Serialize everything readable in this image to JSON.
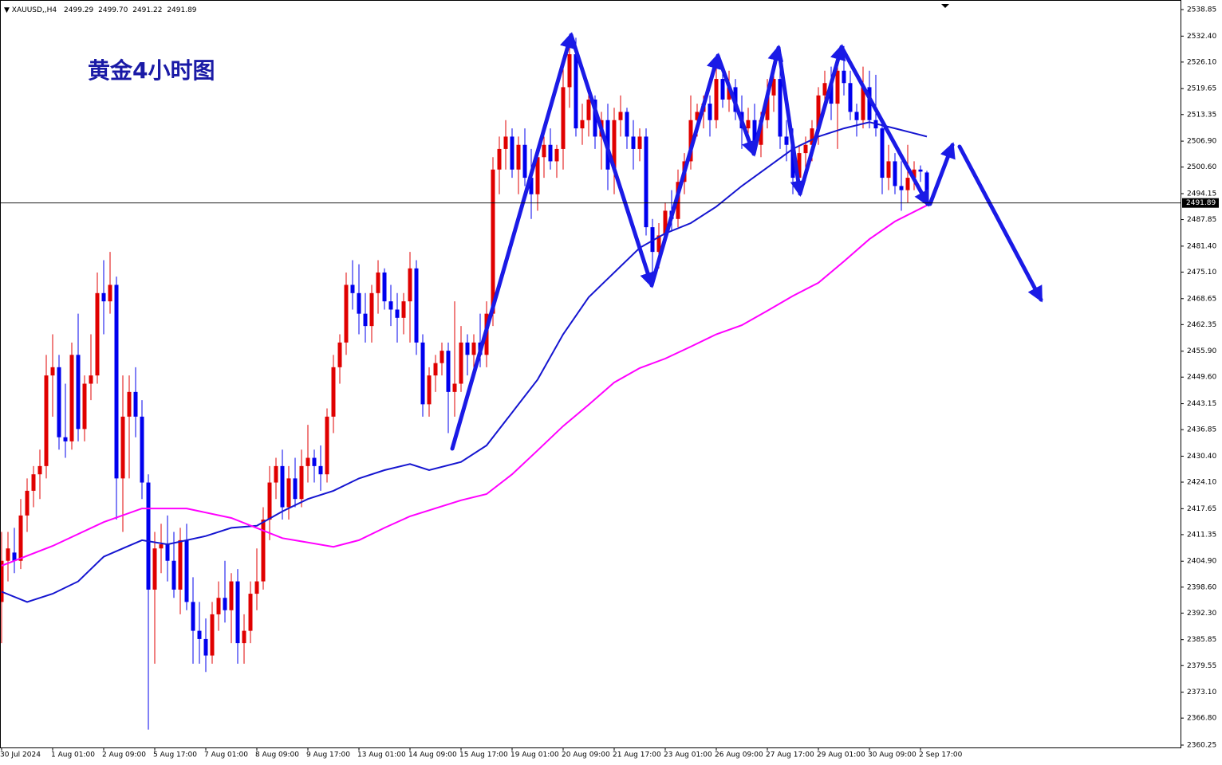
{
  "chart_data": {
    "type": "candlestick",
    "symbol": "XAUUSD,,H4",
    "last_bar_labels": [
      "2499.29",
      "2499.70",
      "2491.22",
      "2491.89"
    ],
    "title": "黄金4小时图",
    "up_color": "#e00000",
    "down_color": "#0000ee",
    "ylim": [
      2359.67,
      2541.17
    ],
    "yticks": [
      2360.25,
      {
        "value": 2366.8,
        "label": "2366.80"
      },
      {
        "value": 2373.1,
        "label": "2373.10"
      },
      2379.55,
      2385.85,
      {
        "value": 2392.3,
        "label": "2392.30"
      },
      {
        "value": 2398.6,
        "label": "2398.60"
      },
      {
        "value": 2404.9,
        "label": "2404.90"
      },
      2411.35,
      2417.65,
      {
        "value": 2424.1,
        "label": "2424.10"
      },
      {
        "value": 2430.4,
        "label": "2430.40"
      },
      2436.85,
      2443.15,
      {
        "value": 2449.6,
        "label": "2449.60"
      },
      {
        "value": 2455.9,
        "label": "2455.90"
      },
      2462.35,
      2468.65,
      {
        "value": 2475.1,
        "label": "2475.10"
      },
      {
        "value": 2481.4,
        "label": "2481.40"
      },
      2487.85,
      2494.15,
      {
        "value": 2500.6,
        "label": "2500.60"
      },
      {
        "value": 2506.9,
        "label": "2506.90"
      },
      2513.35,
      2519.65,
      {
        "value": 2526.1,
        "label": "2526.10"
      },
      {
        "value": 2532.4,
        "label": "2532.40"
      },
      2538.85
    ],
    "categories": [
      "30 Jul 2024",
      null,
      null,
      null,
      null,
      null,
      null,
      null,
      "1 Aug 01:00",
      null,
      null,
      null,
      null,
      null,
      null,
      null,
      "2 Aug 09:00",
      null,
      null,
      null,
      null,
      null,
      null,
      null,
      "5 Aug 17:00",
      null,
      null,
      null,
      null,
      null,
      null,
      null,
      "7 Aug 01:00",
      null,
      null,
      null,
      null,
      null,
      null,
      null,
      "8 Aug 09:00",
      null,
      null,
      null,
      null,
      null,
      null,
      null,
      "9 Aug 17:00",
      null,
      null,
      null,
      null,
      null,
      null,
      null,
      "13 Aug 01:00",
      null,
      null,
      null,
      null,
      null,
      null,
      null,
      "14 Aug 09:00",
      null,
      null,
      null,
      null,
      null,
      null,
      null,
      "15 Aug 17:00",
      null,
      null,
      null,
      null,
      null,
      null,
      null,
      "19 Aug 01:00",
      null,
      null,
      null,
      null,
      null,
      null,
      null,
      "20 Aug 09:00",
      null,
      null,
      null,
      null,
      null,
      null,
      null,
      "21 Aug 17:00",
      null,
      null,
      null,
      null,
      null,
      null,
      null,
      "23 Aug 01:00",
      null,
      null,
      null,
      null,
      null,
      null,
      null,
      "26 Aug 09:00",
      null,
      null,
      null,
      null,
      null,
      null,
      null,
      "27 Aug 17:00",
      null,
      null,
      null,
      null,
      null,
      null,
      null,
      "29 Aug 01:00",
      null,
      null,
      null,
      null,
      null,
      null,
      null,
      "30 Aug 09:00",
      null,
      null,
      null,
      null,
      null,
      null,
      null,
      "2 Sep 17:00",
      null
    ],
    "candles": [
      [
        2395,
        2412,
        2385,
        2405
      ],
      [
        2405,
        2412,
        2400,
        2408
      ],
      [
        2407,
        2413,
        2402,
        2405
      ],
      [
        2405,
        2420,
        2403,
        2416
      ],
      [
        2416,
        2425,
        2412,
        2422
      ],
      [
        2422,
        2428,
        2418,
        2426
      ],
      [
        2426,
        2432,
        2420,
        2428
      ],
      [
        2428,
        2455,
        2425,
        2450
      ],
      [
        2450,
        2460,
        2440,
        2452
      ],
      [
        2452,
        2455,
        2432,
        2435
      ],
      [
        2435,
        2448,
        2430,
        2434
      ],
      [
        2434,
        2458,
        2432,
        2455
      ],
      [
        2455,
        2465,
        2434,
        2437
      ],
      [
        2437,
        2450,
        2434,
        2448
      ],
      [
        2448,
        2460,
        2444,
        2450
      ],
      [
        2450,
        2475,
        2448,
        2470
      ],
      [
        2470,
        2478,
        2460,
        2468
      ],
      [
        2468,
        2480,
        2465,
        2472
      ],
      [
        2472,
        2474,
        2415,
        2425
      ],
      [
        2425,
        2450,
        2412,
        2440
      ],
      [
        2440,
        2450,
        2425,
        2446
      ],
      [
        2446,
        2452,
        2435,
        2440
      ],
      [
        2440,
        2444,
        2420,
        2424
      ],
      [
        2424,
        2426,
        2364,
        2398
      ],
      [
        2398,
        2412,
        2380,
        2408
      ],
      [
        2408,
        2414,
        2402,
        2409
      ],
      [
        2409,
        2416,
        2400,
        2405
      ],
      [
        2405,
        2412,
        2396,
        2398
      ],
      [
        2398,
        2413,
        2392,
        2410
      ],
      [
        2410,
        2414,
        2393,
        2395
      ],
      [
        2395,
        2401,
        2380,
        2388
      ],
      [
        2388,
        2395,
        2380,
        2386
      ],
      [
        2386,
        2391,
        2378,
        2382
      ],
      [
        2382,
        2395,
        2380,
        2392
      ],
      [
        2392,
        2400,
        2388,
        2396
      ],
      [
        2396,
        2405,
        2390,
        2393
      ],
      [
        2393,
        2402,
        2385,
        2400
      ],
      [
        2400,
        2403,
        2380,
        2385
      ],
      [
        2385,
        2392,
        2380,
        2388
      ],
      [
        2388,
        2400,
        2385,
        2397
      ],
      [
        2397,
        2408,
        2393,
        2400
      ],
      [
        2400,
        2418,
        2398,
        2415
      ],
      [
        2415,
        2428,
        2410,
        2424
      ],
      [
        2424,
        2430,
        2420,
        2428
      ],
      [
        2428,
        2432,
        2415,
        2418
      ],
      [
        2418,
        2428,
        2415,
        2425
      ],
      [
        2425,
        2430,
        2418,
        2420
      ],
      [
        2420,
        2432,
        2418,
        2428
      ],
      [
        2428,
        2438,
        2424,
        2430
      ],
      [
        2430,
        2432,
        2424,
        2428
      ],
      [
        2428,
        2433,
        2422,
        2426
      ],
      [
        2426,
        2442,
        2424,
        2440
      ],
      [
        2440,
        2455,
        2436,
        2452
      ],
      [
        2452,
        2460,
        2448,
        2458
      ],
      [
        2458,
        2475,
        2455,
        2472
      ],
      [
        2472,
        2478,
        2466,
        2470
      ],
      [
        2470,
        2477,
        2460,
        2465
      ],
      [
        2465,
        2470,
        2458,
        2462
      ],
      [
        2462,
        2472,
        2458,
        2470
      ],
      [
        2470,
        2478,
        2465,
        2475
      ],
      [
        2475,
        2476,
        2466,
        2468
      ],
      [
        2468,
        2472,
        2462,
        2466
      ],
      [
        2466,
        2470,
        2458,
        2464
      ],
      [
        2464,
        2470,
        2460,
        2468
      ],
      [
        2468,
        2480,
        2458,
        2476
      ],
      [
        2476,
        2478,
        2455,
        2458
      ],
      [
        2458,
        2460,
        2440,
        2443
      ],
      [
        2443,
        2452,
        2440,
        2450
      ],
      [
        2450,
        2455,
        2446,
        2453
      ],
      [
        2453,
        2458,
        2450,
        2456
      ],
      [
        2456,
        2458,
        2436,
        2446
      ],
      [
        2446,
        2468,
        2440,
        2448
      ],
      [
        2448,
        2462,
        2446,
        2458
      ],
      [
        2458,
        2460,
        2450,
        2455
      ],
      [
        2455,
        2460,
        2450,
        2458
      ],
      [
        2458,
        2465,
        2452,
        2455
      ],
      [
        2455,
        2468,
        2452,
        2465
      ],
      [
        2465,
        2503,
        2462,
        2500
      ],
      [
        2500,
        2508,
        2494,
        2505
      ],
      [
        2505,
        2512,
        2500,
        2508
      ],
      [
        2508,
        2510,
        2498,
        2500
      ],
      [
        2500,
        2508,
        2494,
        2506
      ],
      [
        2506,
        2510,
        2496,
        2498
      ],
      [
        2498,
        2505,
        2488,
        2494
      ],
      [
        2494,
        2505,
        2490,
        2503
      ],
      [
        2503,
        2508,
        2498,
        2506
      ],
      [
        2506,
        2510,
        2500,
        2502
      ],
      [
        2502,
        2506,
        2498,
        2505
      ],
      [
        2505,
        2525,
        2500,
        2520
      ],
      [
        2520,
        2532,
        2515,
        2528
      ],
      [
        2528,
        2532,
        2508,
        2510
      ],
      [
        2510,
        2516,
        2506,
        2512
      ],
      [
        2512,
        2520,
        2508,
        2517
      ],
      [
        2517,
        2518,
        2505,
        2508
      ],
      [
        2508,
        2514,
        2500,
        2512
      ],
      [
        2512,
        2516,
        2495,
        2500
      ],
      [
        2500,
        2515,
        2494,
        2512
      ],
      [
        2512,
        2518,
        2508,
        2514
      ],
      [
        2514,
        2515,
        2505,
        2508
      ],
      [
        2508,
        2512,
        2500,
        2505
      ],
      [
        2505,
        2510,
        2502,
        2508
      ],
      [
        2508,
        2510,
        2484,
        2486
      ],
      [
        2486,
        2488,
        2474,
        2480
      ],
      [
        2480,
        2487,
        2476,
        2484
      ],
      [
        2484,
        2492,
        2482,
        2490
      ],
      [
        2490,
        2495,
        2485,
        2488
      ],
      [
        2488,
        2500,
        2486,
        2497
      ],
      [
        2497,
        2504,
        2494,
        2502
      ],
      [
        2502,
        2518,
        2500,
        2512
      ],
      [
        2512,
        2516,
        2508,
        2514
      ],
      [
        2514,
        2518,
        2510,
        2516
      ],
      [
        2516,
        2518,
        2508,
        2512
      ],
      [
        2512,
        2526,
        2510,
        2522
      ],
      [
        2522,
        2525,
        2515,
        2517
      ],
      [
        2517,
        2524,
        2514,
        2520
      ],
      [
        2520,
        2522,
        2512,
        2514
      ],
      [
        2514,
        2518,
        2505,
        2510
      ],
      [
        2510,
        2515,
        2506,
        2512
      ],
      [
        2512,
        2516,
        2504,
        2506
      ],
      [
        2506,
        2514,
        2503,
        2512
      ],
      [
        2512,
        2522,
        2510,
        2518
      ],
      [
        2518,
        2526,
        2514,
        2522
      ],
      [
        2522,
        2528,
        2505,
        2508
      ],
      [
        2508,
        2512,
        2502,
        2506
      ],
      [
        2506,
        2510,
        2494,
        2498
      ],
      [
        2498,
        2506,
        2496,
        2504
      ],
      [
        2504,
        2508,
        2500,
        2506
      ],
      [
        2506,
        2512,
        2502,
        2510
      ],
      [
        2510,
        2520,
        2506,
        2518
      ],
      [
        2518,
        2524,
        2515,
        2521
      ],
      [
        2521,
        2525,
        2512,
        2516
      ],
      [
        2516,
        2528,
        2505,
        2524
      ],
      [
        2524,
        2530,
        2518,
        2521
      ],
      [
        2521,
        2524,
        2512,
        2514
      ],
      [
        2514,
        2516,
        2508,
        2512
      ],
      [
        2512,
        2525,
        2510,
        2520
      ],
      [
        2520,
        2524,
        2510,
        2512
      ],
      [
        2512,
        2523,
        2508,
        2510
      ],
      [
        2510,
        2512,
        2494,
        2498
      ],
      [
        2498,
        2506,
        2495,
        2502
      ],
      [
        2502,
        2504,
        2494,
        2496
      ],
      [
        2496,
        2502,
        2490,
        2495
      ],
      [
        2495,
        2506,
        2492,
        2498
      ],
      [
        2498,
        2502,
        2495,
        2500
      ],
      [
        2500,
        2501,
        2497,
        2499.5
      ],
      [
        2499.29,
        2499.7,
        2491.22,
        2491.89
      ]
    ],
    "moving_averages": [
      {
        "color": "#1515d0",
        "x": [
          0,
          4,
          8,
          12,
          16,
          19,
          22,
          26,
          32,
          36,
          40,
          44,
          48,
          52,
          56,
          60,
          64,
          67,
          72,
          76,
          80,
          84,
          88,
          92,
          96,
          100,
          104,
          108,
          112,
          116,
          120,
          124,
          128,
          132,
          136,
          140,
          145
        ],
        "values": [
          2397.5,
          2395,
          2397,
          2400,
          2406,
          2408,
          2410,
          2409,
          2411,
          2413,
          2413.5,
          2417,
          2420,
          2422,
          2425,
          2427,
          2428.5,
          2427,
          2429,
          2433,
          2441,
          2449,
          2460,
          2469,
          2475,
          2481,
          2484.5,
          2487,
          2491,
          2496,
          2500.5,
          2505,
          2508,
          2510,
          2511.5,
          2510,
          2508
        ]
      },
      {
        "color": "#ff00ff",
        "x": [
          0,
          8,
          16,
          22,
          29,
          36,
          44,
          52,
          56,
          60,
          64,
          72,
          76,
          80,
          84,
          88,
          92,
          96,
          100,
          104,
          108,
          112,
          116,
          120,
          124,
          128,
          132,
          136,
          140,
          145
        ],
        "values": [
          2403.8,
          2408.6,
          2414.4,
          2417.7,
          2417.7,
          2415.4,
          2410.5,
          2408.4,
          2410,
          2413,
          2415.8,
          2419.7,
          2421.2,
          2426,
          2431.8,
          2437.7,
          2442.9,
          2448.3,
          2451.8,
          2454.1,
          2457,
          2460,
          2462.2,
          2465.7,
          2469.3,
          2472.5,
          2477.7,
          2483.1,
          2487.4,
          2491.3
        ]
      }
    ]
  }
}
